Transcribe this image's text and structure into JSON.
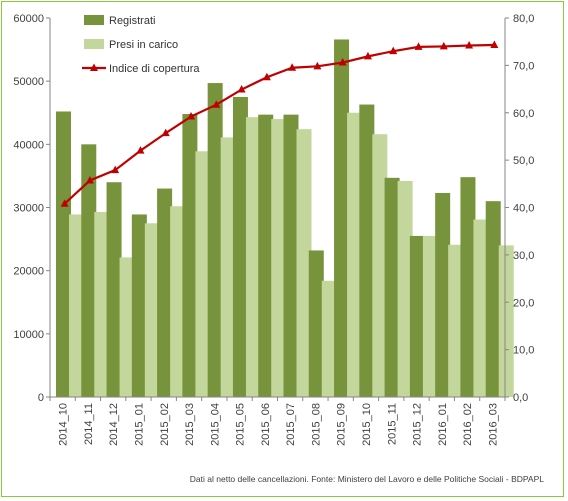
{
  "chart_data": {
    "type": "bar",
    "categories": [
      "2014_10",
      "2014_11",
      "2014_12",
      "2015_01",
      "2015_02",
      "2015_03",
      "2015_04",
      "2015_05",
      "2015_06",
      "2015_07",
      "2015_08",
      "2015_09",
      "2015_10",
      "2015_11",
      "2015_12",
      "2016_01",
      "2016_02",
      "2016_03"
    ],
    "series": [
      {
        "name": "Registrati",
        "type": "bar",
        "axis": "left",
        "color": "#77933c",
        "values": [
          45200,
          40000,
          34000,
          28900,
          33000,
          44800,
          49700,
          47500,
          44700,
          44700,
          23200,
          56600,
          46300,
          34700,
          25500,
          32300,
          34800,
          31000
        ]
      },
      {
        "name": "Presi in carico",
        "type": "bar",
        "axis": "left",
        "color": "#c3d69b",
        "values": [
          28900,
          29300,
          22100,
          27500,
          30200,
          38900,
          41100,
          44300,
          44000,
          42400,
          18400,
          45000,
          41600,
          34200,
          25500,
          24100,
          28100,
          24000
        ]
      },
      {
        "name": "Indice di copertura",
        "type": "line",
        "axis": "right",
        "color": "#c00000",
        "marker": "triangle",
        "values": [
          40.8,
          45.7,
          47.9,
          52.0,
          55.7,
          59.2,
          61.7,
          64.9,
          67.5,
          69.5,
          69.8,
          70.6,
          71.9,
          73.0,
          73.9,
          74.0,
          74.2,
          74.3
        ]
      }
    ],
    "y_left": {
      "min": 0,
      "max": 60000,
      "step": 10000,
      "ticks": [
        "0",
        "10000",
        "20000",
        "30000",
        "40000",
        "50000",
        "60000"
      ]
    },
    "y_right": {
      "min": 0,
      "max": 80,
      "step": 10,
      "ticks": [
        "0,0",
        "10,0",
        "20,0",
        "30,0",
        "40,0",
        "50,0",
        "60,0",
        "70,0",
        "80,0"
      ]
    },
    "grid": false,
    "legend_position": "top-left-inside",
    "footnote": "Dati al netto delle cancellazioni. Fonte: Ministero del Lavoro e delle Politiche Sociali - BDPAPL"
  },
  "colors": {
    "frame": "#8dc63f",
    "axis": "#868686",
    "text": "#404040"
  }
}
